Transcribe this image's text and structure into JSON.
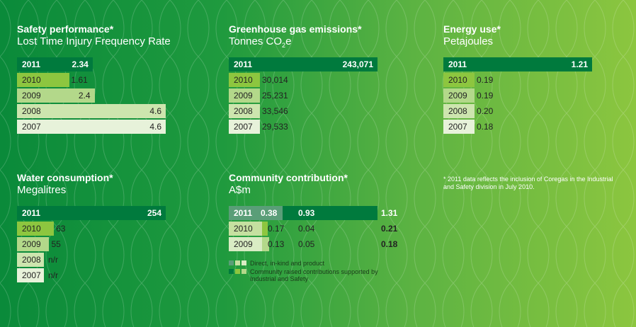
{
  "footnote": "* 2011 data reflects the inclusion of Coregas in the Industrial and Safety division in July 2010.",
  "year_colors": {
    "2011": "#007a3d",
    "2010": "#8dc63f",
    "2009": "#b3d88a",
    "2008": "#cde5ae",
    "2007": "#e7f2da"
  },
  "chart_data": [
    {
      "id": "safety",
      "type": "bar",
      "orientation": "horizontal",
      "title": "Safety performance*",
      "subtitle": "Lost Time Injury Frequency Rate",
      "categories": [
        "2011",
        "2010",
        "2009",
        "2008",
        "2007"
      ],
      "values": [
        2.34,
        1.61,
        2.4,
        4.6,
        4.6
      ],
      "labels": [
        "2.34",
        "1.61",
        "2.4",
        "4.6",
        "4.6"
      ]
    },
    {
      "id": "ghg",
      "type": "bar",
      "orientation": "horizontal",
      "title": "Greenhouse gas emissions*",
      "subtitle": "Tonnes CO",
      "subtitle_sub": "2",
      "subtitle_tail": "e",
      "categories": [
        "2011",
        "2010",
        "2009",
        "2008",
        "2007"
      ],
      "values": [
        243071,
        30014,
        25231,
        33546,
        29533
      ],
      "labels": [
        "243,071",
        "30,014",
        "25,231",
        "33,546",
        "29,533"
      ]
    },
    {
      "id": "energy",
      "type": "bar",
      "orientation": "horizontal",
      "title": "Energy use*",
      "subtitle": "Petajoules",
      "categories": [
        "2011",
        "2010",
        "2009",
        "2008",
        "2007"
      ],
      "values": [
        1.21,
        0.19,
        0.19,
        0.2,
        0.18
      ],
      "labels": [
        "1.21",
        "0.19",
        "0.19",
        "0.20",
        "0.18"
      ]
    },
    {
      "id": "water",
      "type": "bar",
      "orientation": "horizontal",
      "title": "Water consumption*",
      "subtitle": "Megalitres",
      "categories": [
        "2011",
        "2010",
        "2009",
        "2008",
        "2007"
      ],
      "values": [
        254,
        63,
        55,
        null,
        null
      ],
      "labels": [
        "254",
        "63",
        "55",
        "n/r",
        "n/r"
      ]
    },
    {
      "id": "community",
      "type": "bar",
      "orientation": "horizontal",
      "stacked": true,
      "title": "Community contribution*",
      "subtitle": "A$m",
      "categories": [
        "2011",
        "2010",
        "2009"
      ],
      "series": [
        {
          "name": "Direct, in-kind and product",
          "values": [
            0.38,
            0.17,
            0.13
          ],
          "labels": [
            "0.38",
            "0.17",
            "0.13"
          ],
          "colors": [
            "#5a9e78",
            "#c5e0a0",
            "#d9ecc4"
          ]
        },
        {
          "name": "Community raised contributions supported by Industrial and Safety",
          "values": [
            0.93,
            0.04,
            0.05
          ],
          "labels": [
            "0.93",
            "0.04",
            "0.05"
          ],
          "colors": [
            "#007a3d",
            "#8dc63f",
            "#b3d88a"
          ]
        }
      ],
      "totals": [
        "1.31",
        "0.21",
        "0.18"
      ]
    }
  ]
}
